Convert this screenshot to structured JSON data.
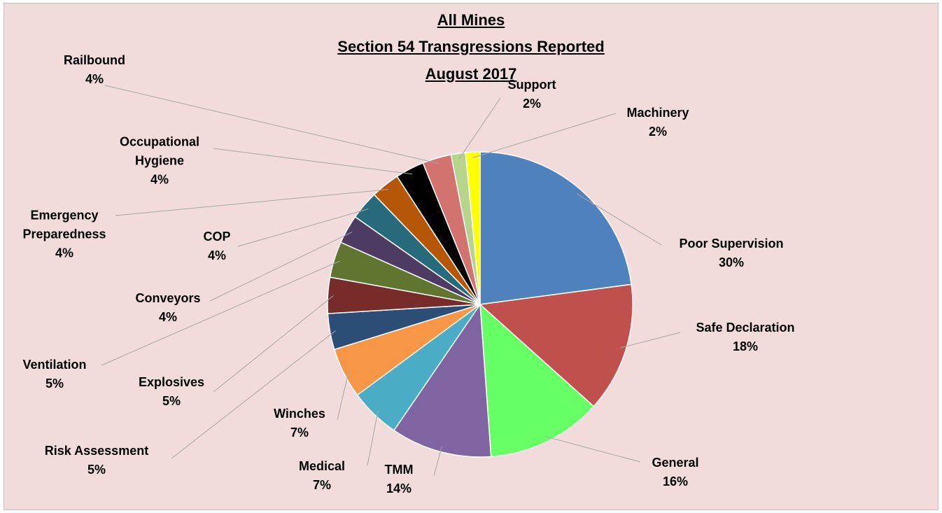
{
  "chart_data": {
    "type": "pie",
    "title": [
      "All Mines",
      "Section 54 Transgressions Reported",
      "August 2017"
    ],
    "categories": [
      "Poor Supervision",
      "Safe Declaration",
      "General",
      "TMM",
      "Medical",
      "Winches",
      "Risk Assessment",
      "Explosives",
      "Ventilation",
      "Conveyors",
      "COP",
      "Emergency Preparedness",
      "Occupational Hygiene",
      "Railbound",
      "Support",
      "Machinery"
    ],
    "values": [
      30,
      18,
      16,
      14,
      7,
      7,
      5,
      5,
      5,
      4,
      4,
      4,
      4,
      4,
      2,
      2
    ],
    "value_labels": [
      "30%",
      "18%",
      "16%",
      "14%",
      "7%",
      "7%",
      "5%",
      "5%",
      "5%",
      "4%",
      "4%",
      "4%",
      "4%",
      "4%",
      "2%",
      "2%"
    ],
    "colors": [
      "#4f81bd",
      "#c0504d",
      "#66ff66",
      "#8064a2",
      "#4bacc6",
      "#f79646",
      "#2c4d75",
      "#772c2a",
      "#5f7530",
      "#4d3b62",
      "#276a7c",
      "#b65708",
      "#000000",
      "#d2736f",
      "#b7d48b",
      "#ffff00"
    ]
  }
}
